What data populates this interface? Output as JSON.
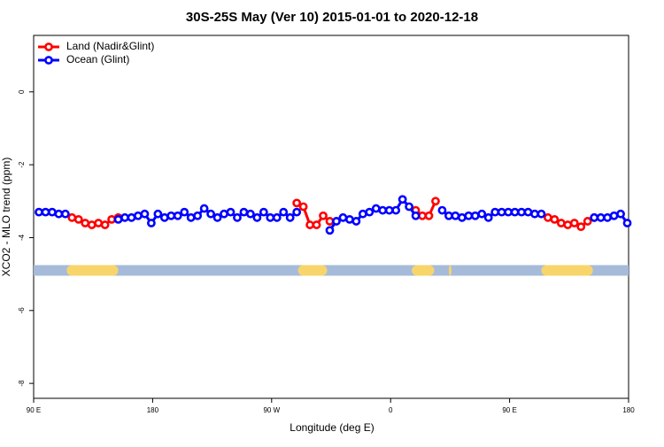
{
  "chart_data": {
    "type": "line",
    "title": "30S-25S May (Ver 10)   2015-01-01 to 2020-12-18",
    "x_label": "Longitude (deg E)",
    "y_label": "XCO2 - MLO trend (ppm)",
    "xlim": [
      90,
      540
    ],
    "ylim": [
      -8.41,
      1.55
    ],
    "xticks": [
      {
        "value": 90,
        "label": "90 E"
      },
      180,
      {
        "value": 270,
        "label": "90 W"
      },
      {
        "value": 360,
        "label": "0"
      },
      {
        "value": 450,
        "label": "90 E"
      },
      {
        "value": 540,
        "label": "180"
      }
    ],
    "yticks": [
      0,
      -2,
      -4,
      -6,
      -8
    ],
    "legend": "top-left",
    "x": [
      94,
      99,
      104,
      109,
      114,
      119,
      124,
      129,
      134,
      139,
      144,
      149,
      154,
      159,
      164,
      169,
      174,
      179,
      184,
      189,
      194,
      199,
      204,
      209,
      214,
      219,
      224,
      229,
      234,
      239,
      244,
      249,
      254,
      259,
      264,
      269,
      274,
      279,
      284,
      289,
      294,
      299,
      304,
      309,
      314,
      319,
      324,
      329,
      334,
      339,
      344,
      349,
      354,
      359,
      364,
      369,
      374,
      379,
      384,
      389,
      394,
      399,
      404,
      409,
      414,
      419,
      424,
      429,
      434,
      439,
      444,
      449,
      454,
      459,
      464,
      469,
      474,
      479,
      484,
      489,
      494,
      499,
      504,
      509,
      514,
      519,
      524,
      529,
      534,
      539
    ],
    "series": [
      {
        "name": "Land (Nadir&Glint)",
        "color": "#ff0000",
        "values": [
          null,
          null,
          null,
          null,
          null,
          -3.45,
          -3.5,
          -3.6,
          -3.65,
          -3.6,
          -3.65,
          -3.5,
          -3.45,
          null,
          null,
          null,
          null,
          null,
          null,
          null,
          null,
          null,
          null,
          null,
          null,
          null,
          null,
          null,
          null,
          null,
          null,
          null,
          null,
          null,
          null,
          null,
          null,
          null,
          null,
          -3.05,
          -3.15,
          -3.65,
          -3.65,
          -3.4,
          -3.55,
          null,
          null,
          null,
          null,
          null,
          null,
          null,
          null,
          null,
          null,
          null,
          null,
          -3.25,
          -3.4,
          -3.4,
          -3.0,
          null,
          null,
          null,
          null,
          null,
          null,
          null,
          null,
          null,
          null,
          null,
          null,
          null,
          null,
          null,
          null,
          -3.45,
          -3.5,
          -3.6,
          -3.65,
          -3.6,
          -3.7,
          -3.55,
          -3.45,
          null,
          null,
          null,
          null,
          null
        ]
      },
      {
        "name": "Ocean (Glint)",
        "color": "#0000ff",
        "values": [
          -3.3,
          -3.3,
          -3.3,
          -3.35,
          -3.35,
          null,
          null,
          null,
          null,
          null,
          null,
          null,
          -3.5,
          -3.45,
          -3.45,
          -3.4,
          -3.35,
          -3.6,
          -3.35,
          -3.45,
          -3.4,
          -3.4,
          -3.3,
          -3.45,
          -3.4,
          -3.2,
          -3.35,
          -3.45,
          -3.35,
          -3.3,
          -3.45,
          -3.3,
          -3.35,
          -3.45,
          -3.3,
          -3.45,
          -3.45,
          -3.3,
          -3.45,
          -3.3,
          null,
          null,
          null,
          null,
          -3.8,
          -3.55,
          -3.45,
          -3.5,
          -3.55,
          -3.35,
          -3.3,
          -3.2,
          -3.25,
          -3.25,
          -3.25,
          -2.95,
          -3.15,
          -3.4,
          null,
          null,
          null,
          -3.25,
          -3.4,
          -3.4,
          -3.45,
          -3.4,
          -3.4,
          -3.35,
          -3.45,
          -3.3,
          -3.3,
          -3.3,
          -3.3,
          -3.3,
          -3.3,
          -3.35,
          -3.35,
          null,
          null,
          null,
          null,
          null,
          null,
          null,
          -3.45,
          -3.45,
          -3.45,
          -3.4,
          -3.35,
          -3.6
        ]
      }
    ],
    "surface_band": {
      "y": -4.9,
      "ocean_color": "#a5bbd9",
      "land_color": "#f8d56b",
      "land": [
        [
          115,
          154
        ],
        [
          290,
          312
        ],
        [
          376,
          393
        ],
        [
          404,
          406
        ],
        [
          474,
          513
        ]
      ]
    }
  }
}
